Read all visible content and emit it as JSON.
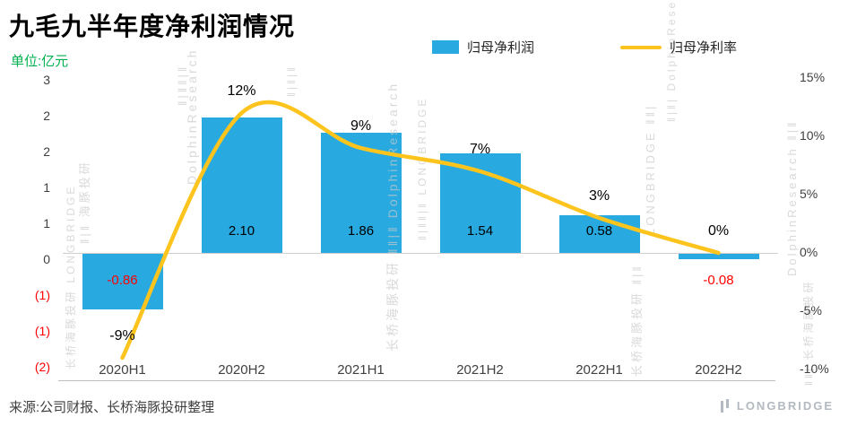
{
  "header": {
    "title": "九毛九半年度净利润情况",
    "unit": "单位:亿元"
  },
  "legend": {
    "bar_label": "归母净利润",
    "line_label": "归母净利率"
  },
  "footer": {
    "source": "来源:公司财报、长桥海豚投研整理",
    "logo_text": "LONGBRIDGE"
  },
  "colors": {
    "bar": "#28a9e0",
    "line": "#fdc41e",
    "negative": "#ff0000",
    "unit": "#00b050",
    "axis_text": "#404040",
    "watermark": "#c9c9c9"
  },
  "watermarks": [
    "‖|‖‖|‖",
    "‖|‖ 海豚投研",
    "长桥海豚投研 LONGBRIDGE",
    "DolphinResearch",
    "‖|‖|‖",
    "长桥海豚投研 ‖‖|‖ DolphinResearch",
    "‖|‖‖|‖ LONGBRIDGE",
    "长桥海豚投研 ‖|‖",
    "LONGBRIDGE ‖‖|",
    "‖|‖| DolphinResearch",
    "DolphinResearch ‖|‖",
    "‖‖| 长桥海豚投研"
  ],
  "chart_data": {
    "type": "bar",
    "combo": "bar+line dual axis",
    "title": "九毛九半年度净利润情况",
    "unit": "亿元",
    "categories": [
      "2020H1",
      "2020H2",
      "2021H1",
      "2021H2",
      "2022H1",
      "2022H2"
    ],
    "series": [
      {
        "name": "归母净利润",
        "type": "bar",
        "axis": "left",
        "values": [
          -0.86,
          2.1,
          1.86,
          1.54,
          0.58,
          -0.08
        ],
        "labels": [
          "-0.86",
          "2.10",
          "1.86",
          "1.54",
          "0.58",
          "-0.08"
        ]
      },
      {
        "name": "归母净利率",
        "type": "line",
        "axis": "right",
        "values": [
          -9,
          12,
          9,
          7,
          3,
          0
        ],
        "labels": [
          "-9%",
          "12%",
          "9%",
          "7%",
          "3%",
          "0%"
        ]
      }
    ],
    "left_axis": {
      "ticks": [
        "3",
        "2",
        "2",
        "1",
        "1",
        "0",
        "(1)",
        "(1)",
        "(2)"
      ],
      "negative_style": "parentheses-red"
    },
    "right_axis": {
      "ticks": [
        "15%",
        "10%",
        "5%",
        "0%",
        "-5%",
        "-10%"
      ],
      "range": [
        -10,
        15
      ]
    },
    "legend_position": "top",
    "grid": false
  }
}
